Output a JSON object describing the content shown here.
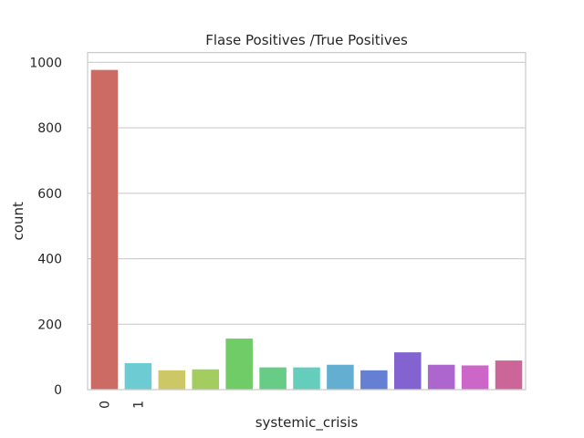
{
  "chart_data": {
    "type": "bar",
    "title": "Flase Positives /True Positives",
    "xlabel": "systemic_crisis",
    "ylabel": "count",
    "ylim": [
      0,
      1030
    ],
    "yticks": [
      0,
      200,
      400,
      600,
      800,
      1000
    ],
    "xtick_labels": [
      "0",
      "1"
    ],
    "grid": "horizontal",
    "values": [
      977,
      81,
      59,
      62,
      156,
      68,
      68,
      76,
      59,
      114,
      76,
      74,
      89
    ],
    "colors": [
      "#cc6b64",
      "#6dcbd3",
      "#ccc866",
      "#a3cd5f",
      "#70cc66",
      "#66cc86",
      "#64cdbc",
      "#64aed2",
      "#6580d2",
      "#8263d0",
      "#ae66cf",
      "#cc66c8",
      "#cc6699"
    ]
  }
}
